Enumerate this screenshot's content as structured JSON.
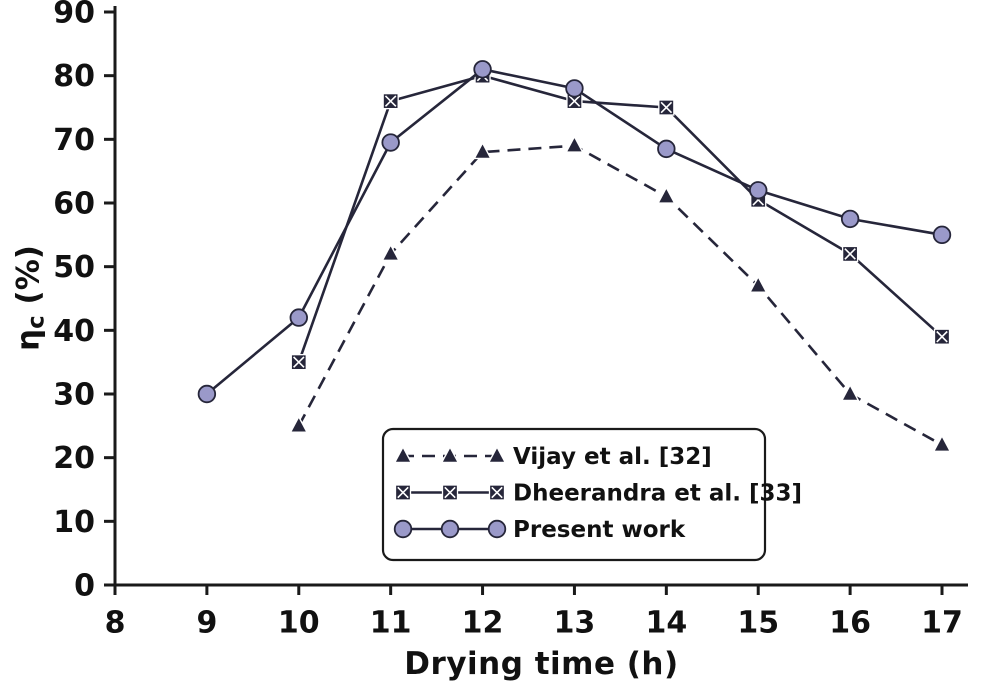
{
  "figure": {
    "background": "#ffffff"
  },
  "chart_data": {
    "type": "line",
    "title": "",
    "xlabel": "Drying time (h)",
    "ylabel": "ηc (%)",
    "ylabel_parts": {
      "symbol": "η",
      "subscript": "c",
      "unit": "(%)"
    },
    "xlim": [
      8,
      17
    ],
    "ylim": [
      0,
      90
    ],
    "x_ticks": [
      8,
      9,
      10,
      11,
      12,
      13,
      14,
      15,
      16,
      17
    ],
    "y_ticks": [
      0,
      10,
      20,
      30,
      40,
      50,
      60,
      70,
      80,
      90
    ],
    "grid": false,
    "legend_position": "inside-bottom-center",
    "axis_color": "#1a1a1a",
    "series": [
      {
        "name": "Vijay et al. [32]",
        "marker": "triangle",
        "line_style": "dashed",
        "color": "#26263a",
        "x": [
          10,
          11,
          12,
          13,
          14,
          15,
          16,
          17
        ],
        "y": [
          25,
          52,
          68,
          69,
          61,
          47,
          30,
          22
        ]
      },
      {
        "name": "Dheerandra et al. [33]",
        "marker": "square-x",
        "line_style": "solid",
        "color": "#26263a",
        "x": [
          10,
          11,
          12,
          13,
          14,
          15,
          16,
          17
        ],
        "y": [
          35,
          76,
          80,
          76,
          75,
          60.5,
          52,
          39
        ]
      },
      {
        "name": "Present work",
        "marker": "circle",
        "line_style": "solid",
        "color": "#26263a",
        "marker_fill": "#9a99c9",
        "x": [
          9,
          10,
          11,
          12,
          13,
          14,
          15,
          16,
          17
        ],
        "y": [
          30,
          42,
          69.5,
          81,
          78,
          68.5,
          62,
          57.5,
          55
        ]
      }
    ]
  }
}
